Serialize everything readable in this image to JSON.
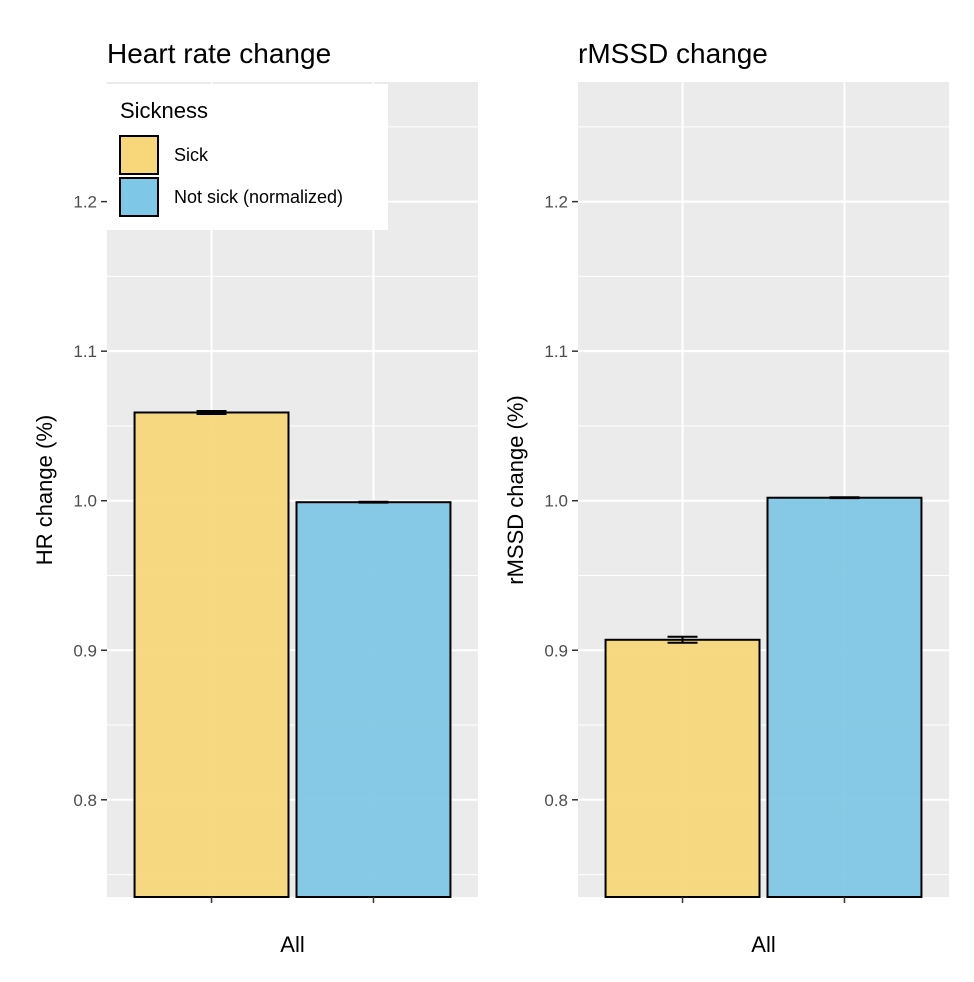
{
  "colors": {
    "panel_background": "#ebebeb",
    "grid_major": "#ffffff",
    "sick": "#f7d77a",
    "not_sick": "#7fc7e6",
    "bar_outline": "#000000",
    "tick_text": "#4d4d4d"
  },
  "legend": {
    "title": "Sickness",
    "placement": "top-left",
    "items": [
      {
        "label": "Sick",
        "color": "#f7d77a"
      },
      {
        "label": "Not sick (normalized)",
        "color": "#7fc7e6"
      }
    ]
  },
  "chart_data": [
    {
      "type": "bar",
      "title": "Heart rate change",
      "xlabel": "",
      "ylabel": "HR change (%)",
      "categories": [
        "All"
      ],
      "x_tick_labels": [
        "All"
      ],
      "series": [
        {
          "name": "Sick",
          "values": [
            1.059
          ],
          "error": [
            0.001
          ]
        },
        {
          "name": "Not sick (normalized)",
          "values": [
            0.999
          ],
          "error": [
            0.0003
          ]
        }
      ],
      "ylim": [
        0.735,
        1.28
      ],
      "yticks": [
        0.8,
        0.9,
        1.0,
        1.1,
        1.2
      ],
      "ytick_labels": [
        "0.8",
        "0.9",
        "1.0",
        "1.1",
        "1.2"
      ],
      "grid": true
    },
    {
      "type": "bar",
      "title": "rMSSD change",
      "xlabel": "",
      "ylabel": "rMSSD change (%)",
      "categories": [
        "All"
      ],
      "x_tick_labels": [
        "All"
      ],
      "series": [
        {
          "name": "Sick",
          "values": [
            0.907
          ],
          "error": [
            0.002
          ]
        },
        {
          "name": "Not sick (normalized)",
          "values": [
            1.002
          ],
          "error": [
            0.0003
          ]
        }
      ],
      "ylim": [
        0.735,
        1.28
      ],
      "yticks": [
        0.8,
        0.9,
        1.0,
        1.1,
        1.2
      ],
      "ytick_labels": [
        "0.8",
        "0.9",
        "1.0",
        "1.1",
        "1.2"
      ],
      "grid": true
    }
  ]
}
